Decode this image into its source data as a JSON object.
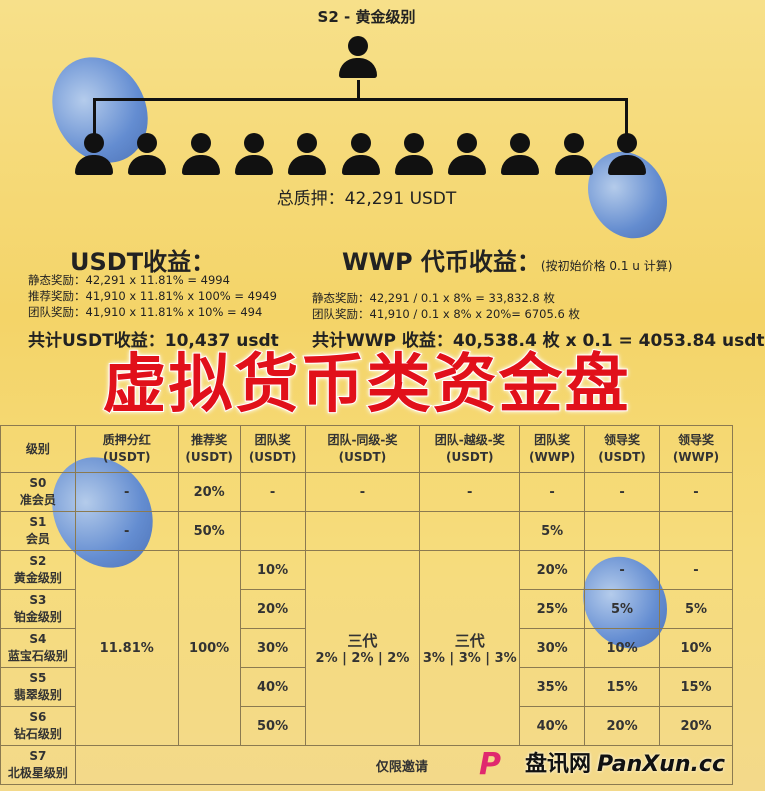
{
  "header": {
    "title": "S2 - 黄金级别",
    "total_pledge": "总质押：42,291 USDT"
  },
  "usdt": {
    "heading": "USDT收益：",
    "lines": [
      "静态奖励：42,291 x 11.81% = 4994",
      "推荐奖励：41,910 x 11.81% x 100% = 4949",
      "团队奖励：41,910 x 11.81% x 10% = 494"
    ],
    "total": "共计USDT收益：10,437 usdt"
  },
  "wwp": {
    "heading": "WWP 代币收益：",
    "note": "(按初始价格 0.1 u 计算)",
    "lines": [
      "静态奖励：42,291 / 0.1 x 8% = 33,832.8 枚",
      "团队奖励：41,910 / 0.1 x 8% x 20%= 6705.6 枚"
    ],
    "total": "共计WWP 收益：40,538.4 枚 x 0.1 = 4053.84 usdt"
  },
  "overlay_title": "虚拟货币类资金盘",
  "table": {
    "headers": [
      "级别",
      "质押分红\n(USDT)",
      "推荐奖\n(USDT)",
      "团队奖\n(USDT)",
      "团队-同级-奖\n(USDT)",
      "团队-越级-奖\n(USDT)",
      "团队奖\n(WWP)",
      "领导奖\n(USDT)",
      "领导奖\n(WWP)"
    ],
    "levels": [
      [
        "S0",
        "准会员"
      ],
      [
        "S1",
        "会员"
      ],
      [
        "S2",
        "黄金级别"
      ],
      [
        "S3",
        "铂金级别"
      ],
      [
        "S4",
        "蓝宝石级别"
      ],
      [
        "S5",
        "翡翠级别"
      ],
      [
        "S6",
        "钻石级别"
      ],
      [
        "S7",
        "北极星级别"
      ]
    ],
    "s0": [
      "-",
      "20%",
      "-",
      "-",
      "-",
      "-",
      "-",
      "-"
    ],
    "s1": [
      "-",
      "50%",
      "",
      "",
      "",
      "5%",
      "",
      ""
    ],
    "pledge_shared": "11.81%",
    "referral_shared": "100%",
    "team": [
      "10%",
      "20%",
      "30%",
      "40%",
      "50%"
    ],
    "same_level": [
      "三代",
      "2% | 2% | 2%"
    ],
    "cross_level": [
      "三代",
      "3% | 3% | 3%"
    ],
    "team_wwp": [
      "20%",
      "25%",
      "30%",
      "35%",
      "40%"
    ],
    "leader_usdt": [
      "-",
      "5%",
      "10%",
      "15%",
      "20%"
    ],
    "leader_wwp": [
      "-",
      "5%",
      "10%",
      "15%",
      "20%"
    ],
    "s7_note": "仅限邀请"
  },
  "watermark": {
    "cn": "盘讯网",
    "en": "PanXun.cc"
  }
}
